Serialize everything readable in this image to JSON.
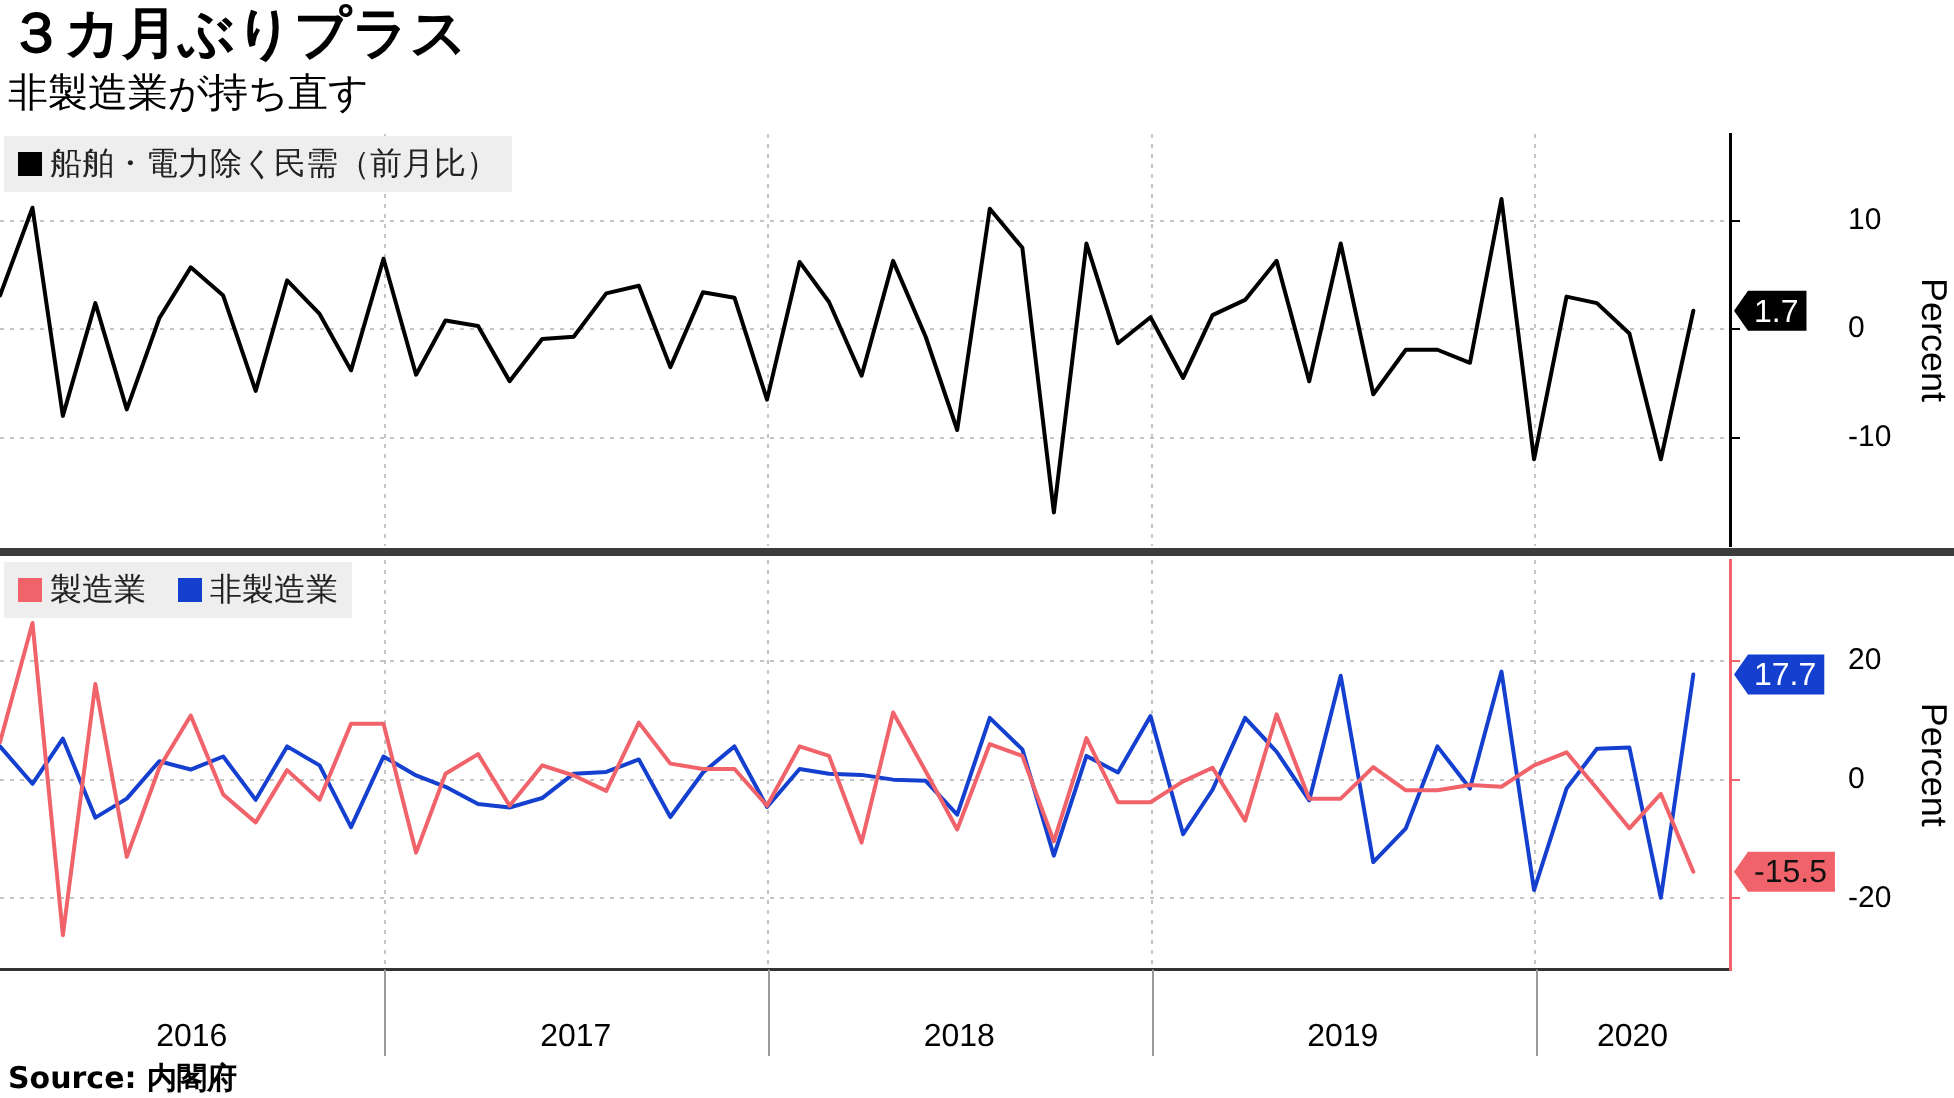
{
  "chart_data": [
    {
      "type": "line",
      "title": "３カ月ぶりプラス",
      "subtitle": "非製造業が持ち直す",
      "ylabel": "Percent",
      "legend": "top left",
      "grid": true,
      "tick_labels": "y",
      "x": [
        "2015-12-31",
        "2016-01-31",
        "2016-02-29",
        "2016-03-31",
        "2016-04-30",
        "2016-05-31",
        "2016-06-30",
        "2016-07-31",
        "2016-08-31",
        "2016-09-30",
        "2016-10-31",
        "2016-11-30",
        "2016-12-31",
        "2017-01-31",
        "2017-02-28",
        "2017-03-31",
        "2017-04-30",
        "2017-05-31",
        "2017-06-30",
        "2017-07-31",
        "2017-08-31",
        "2017-09-30",
        "2017-10-31",
        "2017-11-30",
        "2017-12-31",
        "2018-01-31",
        "2018-02-28",
        "2018-03-31",
        "2018-04-30",
        "2018-05-31",
        "2018-06-30",
        "2018-07-31",
        "2018-08-31",
        "2018-09-30",
        "2018-10-31",
        "2018-11-30",
        "2018-12-31",
        "2019-01-31",
        "2019-02-28",
        "2019-03-31",
        "2019-04-30",
        "2019-05-31",
        "2019-06-30",
        "2019-07-31",
        "2019-08-31",
        "2019-09-30",
        "2019-10-31",
        "2019-11-30",
        "2019-12-31",
        "2020-01-31",
        "2020-02-29",
        "2020-03-31",
        "2020-04-30",
        "2020-05-31"
      ],
      "xlim": [
        "2015-12-31",
        "2020-07-05"
      ],
      "xticks": [
        {
          "value": "2017-01-01",
          "label": null
        },
        {
          "value": "2018-01-01",
          "label": null
        },
        {
          "value": "2019-01-01",
          "label": null
        },
        {
          "value": "2020-01-01",
          "label": null
        }
      ],
      "ylim": [
        -20,
        18
      ],
      "yticks": [
        -10,
        0,
        10
      ],
      "series": [
        {
          "name": "船舶・電力除く民需（前月比）",
          "color": "#000000",
          "values": [
            3.1,
            11.2,
            -8.0,
            2.4,
            -7.4,
            1.0,
            5.7,
            3.1,
            -5.7,
            4.5,
            1.4,
            -3.8,
            6.5,
            -4.2,
            0.8,
            0.3,
            -4.8,
            -0.9,
            -0.7,
            3.3,
            4.0,
            -3.5,
            3.4,
            2.9,
            -6.5,
            6.2,
            2.5,
            -4.3,
            6.3,
            -0.7,
            -9.3,
            11.1,
            7.5,
            -16.9,
            7.9,
            -1.3,
            1.1,
            -4.5,
            1.3,
            2.7,
            6.3,
            -4.8,
            7.9,
            -6.0,
            -1.9,
            -1.9,
            -3.1,
            12.0,
            -12.0,
            3.0,
            2.4,
            -0.4,
            -12.0,
            1.7
          ],
          "value_labels": [
            null,
            null,
            null,
            null,
            null,
            null,
            null,
            null,
            null,
            null,
            null,
            null,
            null,
            null,
            null,
            null,
            null,
            null,
            null,
            null,
            null,
            null,
            null,
            null,
            null,
            null,
            null,
            null,
            null,
            null,
            null,
            null,
            null,
            null,
            null,
            null,
            null,
            null,
            null,
            null,
            null,
            null,
            null,
            null,
            null,
            null,
            null,
            null,
            null,
            null,
            null,
            null,
            null,
            "1.7"
          ]
        }
      ]
    },
    {
      "type": "line",
      "ylabel": "Percent",
      "legend": "top left",
      "grid": true,
      "annotations": [
        "Source: 内閣府"
      ],
      "x": [
        "2015-12-31",
        "2016-01-31",
        "2016-02-29",
        "2016-03-31",
        "2016-04-30",
        "2016-05-31",
        "2016-06-30",
        "2016-07-31",
        "2016-08-31",
        "2016-09-30",
        "2016-10-31",
        "2016-11-30",
        "2016-12-31",
        "2017-01-31",
        "2017-02-28",
        "2017-03-31",
        "2017-04-30",
        "2017-05-31",
        "2017-06-30",
        "2017-07-31",
        "2017-08-31",
        "2017-09-30",
        "2017-10-31",
        "2017-11-30",
        "2017-12-31",
        "2018-01-31",
        "2018-02-28",
        "2018-03-31",
        "2018-04-30",
        "2018-05-31",
        "2018-06-30",
        "2018-07-31",
        "2018-08-31",
        "2018-09-30",
        "2018-10-31",
        "2018-11-30",
        "2018-12-31",
        "2019-01-31",
        "2019-02-28",
        "2019-03-31",
        "2019-04-30",
        "2019-05-31",
        "2019-06-30",
        "2019-07-31",
        "2019-08-31",
        "2019-09-30",
        "2019-10-31",
        "2019-11-30",
        "2019-12-31",
        "2020-01-31",
        "2020-02-29",
        "2020-03-31",
        "2020-04-30",
        "2020-05-31"
      ],
      "xlim": [
        "2015-12-31",
        "2020-07-05"
      ],
      "xticks": [
        {
          "value": "2016-07-01",
          "label": "2016"
        },
        {
          "value": "2017-01-01",
          "label": null
        },
        {
          "value": "2017-07-02",
          "label": "2017"
        },
        {
          "value": "2018-01-01",
          "label": null
        },
        {
          "value": "2018-07-02",
          "label": "2018"
        },
        {
          "value": "2019-01-01",
          "label": null
        },
        {
          "value": "2019-07-02",
          "label": "2019"
        },
        {
          "value": "2020-01-01",
          "label": null
        },
        {
          "value": "2020-04-03",
          "label": "2020"
        }
      ],
      "ylim": [
        -32,
        37
      ],
      "yticks": [
        -20,
        0,
        20
      ],
      "series": [
        {
          "name": "製造業",
          "color": "#f0636a",
          "values": [
            6.3,
            26.4,
            -26.2,
            16.1,
            -13.0,
            2.0,
            10.8,
            -2.5,
            -7.2,
            1.6,
            -3.4,
            9.4,
            9.4,
            -12.3,
            1.0,
            4.3,
            -4.4,
            2.4,
            0.7,
            -1.9,
            9.6,
            2.7,
            1.8,
            1.8,
            -4.4,
            5.6,
            4.0,
            -10.6,
            11.3,
            1.4,
            -8.4,
            6.0,
            4.0,
            -10.4,
            7.0,
            -3.8,
            -3.8,
            -0.3,
            2.0,
            -6.9,
            11.0,
            -3.2,
            -3.2,
            2.1,
            -1.8,
            -1.8,
            -0.9,
            -1.2,
            2.4,
            4.6,
            -1.5,
            -8.2,
            -2.4,
            -15.5
          ],
          "value_labels": [
            null,
            null,
            null,
            null,
            null,
            null,
            null,
            null,
            null,
            null,
            null,
            null,
            null,
            null,
            null,
            null,
            null,
            null,
            null,
            null,
            null,
            null,
            null,
            null,
            null,
            null,
            null,
            null,
            null,
            null,
            null,
            null,
            null,
            null,
            null,
            null,
            null,
            null,
            null,
            null,
            null,
            null,
            null,
            null,
            null,
            null,
            null,
            null,
            null,
            null,
            null,
            null,
            null,
            "-15.5"
          ]
        },
        {
          "name": "非製造業",
          "color": "#1540cf",
          "values": [
            5.6,
            -0.7,
            6.9,
            -6.4,
            -3.2,
            3.1,
            1.7,
            3.9,
            -3.4,
            5.6,
            2.4,
            -8.0,
            3.9,
            0.7,
            -1.2,
            -4.1,
            -4.7,
            -3.1,
            1.0,
            1.3,
            3.4,
            -6.3,
            1.2,
            5.6,
            -4.6,
            1.8,
            1.0,
            0.8,
            0.0,
            -0.2,
            -5.9,
            10.4,
            5.1,
            -12.8,
            4.0,
            1.2,
            10.7,
            -9.2,
            -1.7,
            10.4,
            4.7,
            -3.5,
            17.5,
            -13.9,
            -8.2,
            5.6,
            -1.5,
            18.2,
            -18.6,
            -1.5,
            5.2,
            5.4,
            -19.9,
            17.7
          ],
          "value_labels": [
            null,
            null,
            null,
            null,
            null,
            null,
            null,
            null,
            null,
            null,
            null,
            null,
            null,
            null,
            null,
            null,
            null,
            null,
            null,
            null,
            null,
            null,
            null,
            null,
            null,
            null,
            null,
            null,
            null,
            null,
            null,
            null,
            null,
            null,
            null,
            null,
            null,
            null,
            null,
            null,
            null,
            null,
            null,
            null,
            null,
            null,
            null,
            null,
            null,
            null,
            null,
            null,
            null,
            "17.7"
          ]
        }
      ]
    }
  ]
}
